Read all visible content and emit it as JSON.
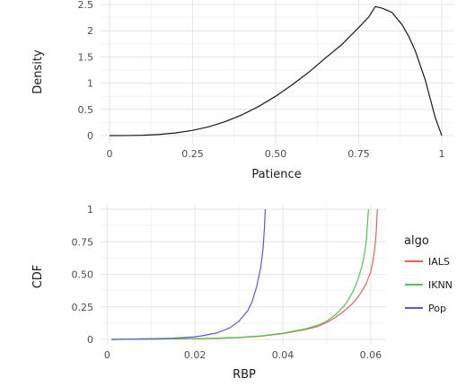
{
  "chart_data": [
    {
      "type": "line",
      "xlabel": "Patience",
      "ylabel": "Density",
      "xlim": [
        0,
        1
      ],
      "ylim": [
        0,
        2.5
      ],
      "x_ticks": [
        0,
        0.25,
        0.5,
        0.75,
        1
      ],
      "x_tick_labels": [
        "0",
        "0.25",
        "0.50",
        "0.75",
        "1"
      ],
      "y_ticks": [
        0,
        0.5,
        1,
        1.5,
        2,
        2.5
      ],
      "y_tick_labels": [
        "0",
        "0.5",
        "1",
        "1.5",
        "2",
        "2.5"
      ],
      "grid": true,
      "series": [
        {
          "color": "#1a1a1a",
          "x": [
            0,
            0.05,
            0.1,
            0.15,
            0.2,
            0.25,
            0.3,
            0.35,
            0.4,
            0.45,
            0.5,
            0.55,
            0.6,
            0.65,
            0.7,
            0.75,
            0.78,
            0.8,
            0.82,
            0.85,
            0.88,
            0.9,
            0.92,
            0.95,
            0.98,
            1
          ],
          "y": [
            0,
            0.001,
            0.007,
            0.022,
            0.051,
            0.1,
            0.17,
            0.27,
            0.4,
            0.56,
            0.75,
            0.97,
            1.21,
            1.48,
            1.74,
            2.06,
            2.26,
            2.46,
            2.43,
            2.35,
            2.12,
            1.9,
            1.62,
            1.07,
            0.35,
            0
          ]
        }
      ]
    },
    {
      "type": "line",
      "xlabel": "RBP",
      "ylabel": "CDF",
      "xlim": [
        -0.0015,
        0.0635
      ],
      "ylim": [
        0,
        1
      ],
      "x_ticks": [
        0,
        0.02,
        0.04,
        0.06
      ],
      "x_tick_labels": [
        "0",
        "0.02",
        "0.04",
        "0.06"
      ],
      "y_ticks": [
        0,
        0.25,
        0.5,
        0.75,
        1
      ],
      "y_tick_labels": [
        "0",
        "0.25",
        "0.50",
        "0.75",
        "1"
      ],
      "grid": true,
      "legend": {
        "title": "algo",
        "position": "right"
      },
      "series": [
        {
          "name": "IALS",
          "color": "#e8605a",
          "x": [
            0.001,
            0.01,
            0.02,
            0.025,
            0.03,
            0.035,
            0.04,
            0.045,
            0.048,
            0.05,
            0.052,
            0.054,
            0.056,
            0.057,
            0.058,
            0.059,
            0.06,
            0.0605,
            0.061,
            0.0613,
            0.0615
          ],
          "y": [
            0,
            0.002,
            0.005,
            0.008,
            0.014,
            0.025,
            0.045,
            0.075,
            0.1,
            0.13,
            0.17,
            0.22,
            0.28,
            0.32,
            0.37,
            0.43,
            0.52,
            0.6,
            0.72,
            0.85,
            1.0
          ]
        },
        {
          "name": "IKNN",
          "color": "#4ec84e",
          "x": [
            0.001,
            0.01,
            0.02,
            0.025,
            0.03,
            0.035,
            0.04,
            0.045,
            0.048,
            0.05,
            0.052,
            0.054,
            0.055,
            0.056,
            0.057,
            0.058,
            0.0585,
            0.059,
            0.0592,
            0.0595
          ],
          "y": [
            0,
            0.002,
            0.006,
            0.01,
            0.016,
            0.027,
            0.048,
            0.08,
            0.11,
            0.14,
            0.19,
            0.26,
            0.31,
            0.37,
            0.45,
            0.56,
            0.64,
            0.76,
            0.86,
            1.0
          ]
        },
        {
          "name": "Pop",
          "color": "#5a5ad4",
          "x": [
            0.001,
            0.005,
            0.01,
            0.015,
            0.02,
            0.022,
            0.025,
            0.028,
            0.03,
            0.032,
            0.033,
            0.034,
            0.035,
            0.0355,
            0.0358,
            0.036
          ],
          "y": [
            0,
            0.002,
            0.005,
            0.009,
            0.02,
            0.03,
            0.05,
            0.09,
            0.14,
            0.22,
            0.29,
            0.4,
            0.56,
            0.7,
            0.85,
            1.0
          ]
        }
      ]
    }
  ]
}
